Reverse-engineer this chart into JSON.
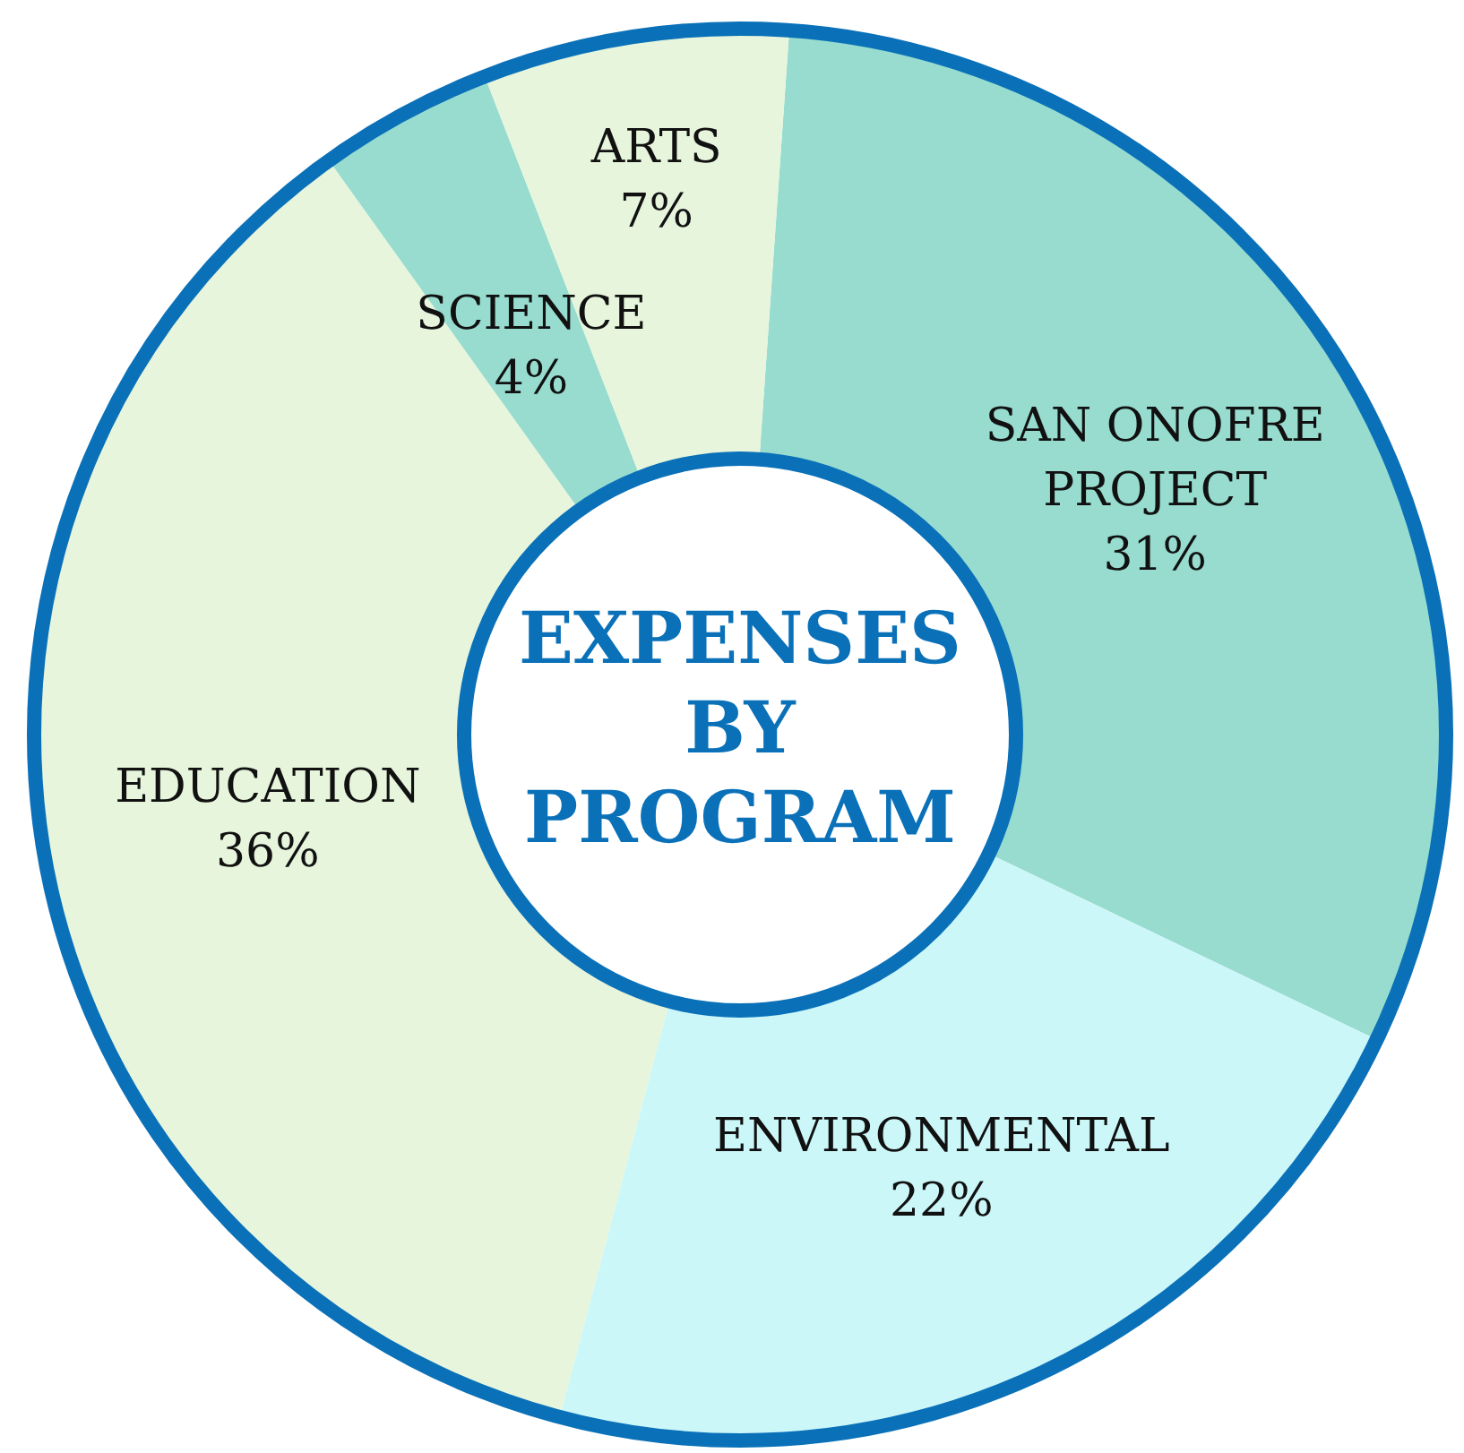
{
  "chart_data": {
    "type": "donut",
    "title": "EXPENSES BY PROGRAM",
    "categories": [
      "SAN ONOFRE PROJECT",
      "ENVIRONMENTAL",
      "EDUCATION",
      "SCIENCE",
      "ARTS"
    ],
    "values": [
      31,
      22,
      36,
      4,
      7
    ],
    "value_labels": [
      "31%",
      "22%",
      "36%",
      "4%",
      "7%"
    ],
    "colors": [
      "#97dccf",
      "#ccf7f9",
      "#e6f5dc",
      "#97dccf",
      "#e6f5dc"
    ]
  }
}
